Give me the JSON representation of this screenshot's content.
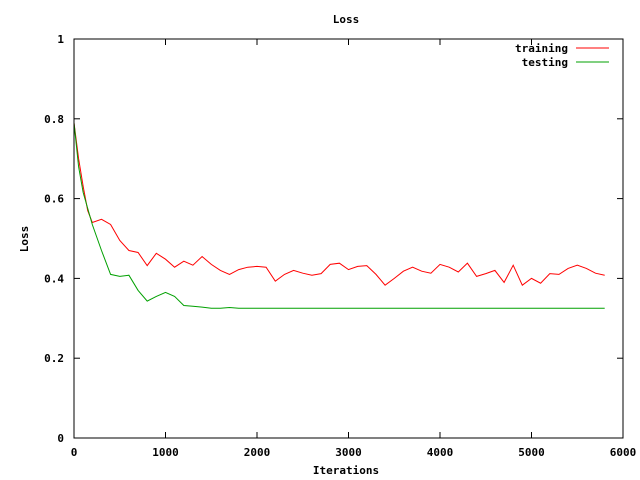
{
  "chart_data": {
    "type": "line",
    "title": "Loss",
    "xlabel": "Iterations",
    "ylabel": "Loss",
    "xlim": [
      0,
      6000
    ],
    "ylim": [
      0,
      1
    ],
    "xticks": [
      0,
      1000,
      2000,
      3000,
      4000,
      5000,
      6000
    ],
    "xtick_labels": [
      "0",
      "1000",
      "2000",
      "3000",
      "4000",
      "5000",
      "6000"
    ],
    "yticks": [
      0,
      0.2,
      0.4,
      0.6,
      0.8,
      1
    ],
    "ytick_labels": [
      "0",
      "0.2",
      "0.4",
      "0.6",
      "0.8",
      "1"
    ],
    "grid": false,
    "legend_position": "top-right",
    "series": [
      {
        "name": "training",
        "color": "#ff0000",
        "x": [
          0,
          50,
          100,
          150,
          200,
          300,
          400,
          500,
          600,
          700,
          800,
          900,
          1000,
          1100,
          1200,
          1300,
          1400,
          1500,
          1600,
          1700,
          1800,
          1900,
          2000,
          2100,
          2200,
          2300,
          2400,
          2500,
          2600,
          2700,
          2800,
          2900,
          3000,
          3100,
          3200,
          3300,
          3400,
          3500,
          3600,
          3700,
          3800,
          3900,
          4000,
          4100,
          4200,
          4300,
          4400,
          4500,
          4600,
          4700,
          4800,
          4900,
          5000,
          5100,
          5200,
          5300,
          5400,
          5500,
          5600,
          5700,
          5800
        ],
        "y": [
          0.79,
          0.7,
          0.63,
          0.57,
          0.54,
          0.548,
          0.535,
          0.495,
          0.47,
          0.465,
          0.432,
          0.463,
          0.448,
          0.428,
          0.443,
          0.433,
          0.455,
          0.435,
          0.42,
          0.41,
          0.422,
          0.428,
          0.43,
          0.428,
          0.393,
          0.41,
          0.42,
          0.413,
          0.408,
          0.412,
          0.435,
          0.438,
          0.422,
          0.43,
          0.432,
          0.41,
          0.383,
          0.4,
          0.418,
          0.428,
          0.418,
          0.413,
          0.435,
          0.428,
          0.416,
          0.438,
          0.405,
          0.412,
          0.42,
          0.39,
          0.433,
          0.383,
          0.4,
          0.388,
          0.412,
          0.41,
          0.425,
          0.433,
          0.425,
          0.413,
          0.408
        ]
      },
      {
        "name": "testing",
        "color": "#00a000",
        "x": [
          0,
          50,
          100,
          200,
          300,
          400,
          500,
          600,
          700,
          800,
          900,
          1000,
          1100,
          1200,
          1300,
          1400,
          1500,
          1600,
          1700,
          1800,
          1900,
          2000,
          3000,
          4000,
          5000,
          5800
        ],
        "y": [
          0.79,
          0.68,
          0.615,
          0.535,
          0.47,
          0.41,
          0.405,
          0.408,
          0.37,
          0.343,
          0.355,
          0.365,
          0.355,
          0.332,
          0.33,
          0.328,
          0.325,
          0.325,
          0.327,
          0.325,
          0.325,
          0.325,
          0.325,
          0.325,
          0.325,
          0.325
        ]
      }
    ]
  }
}
